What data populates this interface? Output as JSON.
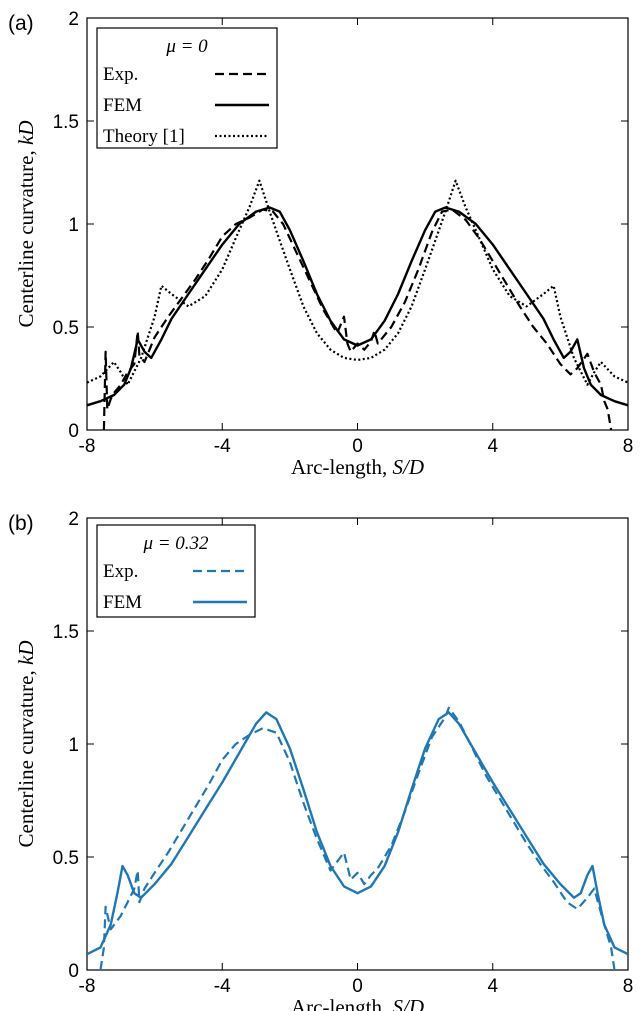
{
  "chart_data": [
    {
      "panel_label": "(a)",
      "type": "line",
      "xlabel": "Arc-length, S/D",
      "ylabel": "Centerline curvature, kD",
      "xlim": [
        -8,
        8
      ],
      "ylim": [
        0,
        2
      ],
      "xticks": [
        "-8",
        "-4",
        "0",
        "4",
        "8"
      ],
      "yticks": [
        "0",
        "0.5",
        "1",
        "1.5",
        "2"
      ],
      "grid": false,
      "legend_title": "μ = 0",
      "legend_position": "top-left",
      "color": "#000000",
      "series": [
        {
          "name": "Exp.",
          "style": "dashed",
          "x": [
            -7.5,
            -7.45,
            -7.4,
            -7.3,
            -7.2,
            -7.0,
            -6.8,
            -6.6,
            -6.5,
            -6.45,
            -6.3,
            -6.0,
            -5.6,
            -5.2,
            -4.8,
            -4.4,
            -4.0,
            -3.6,
            -3.2,
            -2.8,
            -2.5,
            -2.2,
            -1.8,
            -1.4,
            -1.0,
            -0.6,
            -0.4,
            -0.3,
            -0.2,
            0.0,
            0.2,
            0.4,
            0.5,
            0.6,
            1.0,
            1.4,
            1.8,
            2.2,
            2.5,
            2.8,
            3.2,
            3.6,
            4.0,
            4.4,
            4.8,
            5.2,
            5.6,
            6.0,
            6.3,
            6.5,
            6.8,
            7.0,
            7.2,
            7.3,
            7.4,
            7.5
          ],
          "y": [
            0.0,
            0.38,
            0.1,
            0.15,
            0.18,
            0.22,
            0.28,
            0.32,
            0.48,
            0.36,
            0.33,
            0.45,
            0.55,
            0.64,
            0.73,
            0.83,
            0.94,
            1.0,
            1.03,
            1.07,
            1.06,
            1.0,
            0.86,
            0.72,
            0.58,
            0.47,
            0.55,
            0.42,
            0.38,
            0.42,
            0.39,
            0.43,
            0.48,
            0.42,
            0.5,
            0.62,
            0.78,
            0.96,
            1.06,
            1.07,
            1.02,
            0.93,
            0.82,
            0.71,
            0.6,
            0.5,
            0.42,
            0.32,
            0.27,
            0.3,
            0.37,
            0.28,
            0.22,
            0.14,
            0.1,
            0.0
          ]
        },
        {
          "name": "FEM",
          "style": "solid",
          "x": [
            -8.0,
            -7.6,
            -7.2,
            -6.9,
            -6.7,
            -6.5,
            -6.3,
            -6.1,
            -5.8,
            -5.5,
            -5.0,
            -4.5,
            -4.0,
            -3.5,
            -3.0,
            -2.6,
            -2.3,
            -2.0,
            -1.6,
            -1.2,
            -0.8,
            -0.4,
            0.0,
            0.4,
            0.8,
            1.2,
            1.6,
            2.0,
            2.3,
            2.6,
            3.0,
            3.5,
            4.0,
            4.5,
            5.0,
            5.5,
            5.8,
            6.1,
            6.3,
            6.5,
            6.7,
            6.9,
            7.2,
            7.6,
            8.0
          ],
          "y": [
            0.12,
            0.14,
            0.17,
            0.22,
            0.3,
            0.44,
            0.38,
            0.35,
            0.44,
            0.54,
            0.66,
            0.78,
            0.9,
            1.0,
            1.06,
            1.08,
            1.06,
            0.97,
            0.82,
            0.66,
            0.53,
            0.44,
            0.41,
            0.44,
            0.53,
            0.66,
            0.82,
            0.97,
            1.06,
            1.08,
            1.06,
            1.0,
            0.9,
            0.78,
            0.66,
            0.54,
            0.44,
            0.35,
            0.38,
            0.44,
            0.3,
            0.22,
            0.17,
            0.14,
            0.12
          ]
        },
        {
          "name": "Theory [1]",
          "style": "dotted",
          "x": [
            -8.0,
            -7.6,
            -7.2,
            -7.0,
            -6.8,
            -6.4,
            -6.0,
            -5.8,
            -5.5,
            -5.0,
            -4.5,
            -4.0,
            -3.5,
            -3.2,
            -2.9,
            -2.6,
            -2.3,
            -2.0,
            -1.6,
            -1.2,
            -0.8,
            -0.4,
            0.0,
            0.4,
            0.8,
            1.2,
            1.6,
            2.0,
            2.3,
            2.6,
            2.9,
            3.2,
            3.5,
            4.0,
            4.5,
            5.0,
            5.5,
            5.8,
            6.0,
            6.4,
            6.8,
            7.0,
            7.2,
            7.6,
            8.0
          ],
          "y": [
            0.23,
            0.26,
            0.33,
            0.28,
            0.22,
            0.35,
            0.55,
            0.7,
            0.66,
            0.6,
            0.65,
            0.78,
            0.97,
            1.08,
            1.21,
            1.06,
            0.92,
            0.78,
            0.6,
            0.47,
            0.39,
            0.35,
            0.34,
            0.35,
            0.39,
            0.47,
            0.6,
            0.78,
            0.92,
            1.06,
            1.21,
            1.08,
            0.97,
            0.78,
            0.65,
            0.6,
            0.66,
            0.7,
            0.55,
            0.35,
            0.22,
            0.28,
            0.33,
            0.26,
            0.23
          ]
        }
      ]
    },
    {
      "panel_label": "(b)",
      "type": "line",
      "xlabel": "Arc-length, S/D",
      "ylabel": "Centerline curvature, kD",
      "xlim": [
        -8,
        8
      ],
      "ylim": [
        0,
        2
      ],
      "xticks": [
        "-8",
        "-4",
        "0",
        "4",
        "8"
      ],
      "yticks": [
        "0",
        "0.5",
        "1",
        "1.5",
        "2"
      ],
      "grid": false,
      "legend_title": "μ = 0.32",
      "legend_position": "top-left",
      "color": "#1f77b4",
      "series": [
        {
          "name": "Exp.",
          "style": "dashed",
          "x": [
            -7.6,
            -7.5,
            -7.45,
            -7.3,
            -7.0,
            -6.8,
            -6.6,
            -6.5,
            -6.45,
            -6.3,
            -6.0,
            -5.6,
            -5.2,
            -4.8,
            -4.4,
            -4.0,
            -3.6,
            -3.2,
            -2.8,
            -2.4,
            -2.0,
            -1.6,
            -1.2,
            -0.8,
            -0.5,
            -0.4,
            -0.2,
            0.0,
            0.2,
            0.4,
            0.6,
            1.0,
            1.4,
            1.8,
            2.2,
            2.6,
            2.7,
            3.0,
            3.4,
            3.8,
            4.2,
            4.6,
            5.0,
            5.4,
            5.8,
            6.2,
            6.5,
            6.8,
            7.0,
            7.3,
            7.5,
            7.6
          ],
          "y": [
            0.0,
            0.1,
            0.28,
            0.18,
            0.24,
            0.3,
            0.36,
            0.44,
            0.3,
            0.36,
            0.43,
            0.52,
            0.62,
            0.72,
            0.82,
            0.93,
            1.0,
            1.04,
            1.07,
            1.05,
            0.92,
            0.74,
            0.58,
            0.44,
            0.5,
            0.52,
            0.4,
            0.43,
            0.38,
            0.42,
            0.45,
            0.55,
            0.7,
            0.87,
            1.03,
            1.12,
            1.16,
            1.1,
            0.98,
            0.86,
            0.76,
            0.66,
            0.56,
            0.47,
            0.39,
            0.3,
            0.27,
            0.32,
            0.36,
            0.2,
            0.1,
            0.0
          ]
        },
        {
          "name": "FEM",
          "style": "solid",
          "x": [
            -8.0,
            -7.6,
            -7.3,
            -7.1,
            -6.95,
            -6.8,
            -6.6,
            -6.4,
            -6.0,
            -5.5,
            -5.0,
            -4.5,
            -4.0,
            -3.5,
            -3.0,
            -2.7,
            -2.4,
            -2.0,
            -1.6,
            -1.2,
            -0.8,
            -0.4,
            0.0,
            0.4,
            0.8,
            1.2,
            1.6,
            2.0,
            2.4,
            2.7,
            3.0,
            3.5,
            4.0,
            4.5,
            5.0,
            5.5,
            6.0,
            6.4,
            6.6,
            6.8,
            6.95,
            7.1,
            7.3,
            7.6,
            8.0
          ],
          "y": [
            0.07,
            0.1,
            0.2,
            0.34,
            0.46,
            0.42,
            0.34,
            0.32,
            0.38,
            0.47,
            0.59,
            0.71,
            0.83,
            0.96,
            1.09,
            1.14,
            1.11,
            0.98,
            0.8,
            0.61,
            0.46,
            0.37,
            0.34,
            0.37,
            0.46,
            0.61,
            0.8,
            0.98,
            1.11,
            1.14,
            1.09,
            0.96,
            0.83,
            0.71,
            0.59,
            0.47,
            0.38,
            0.32,
            0.34,
            0.42,
            0.46,
            0.34,
            0.2,
            0.1,
            0.07
          ]
        }
      ]
    }
  ]
}
